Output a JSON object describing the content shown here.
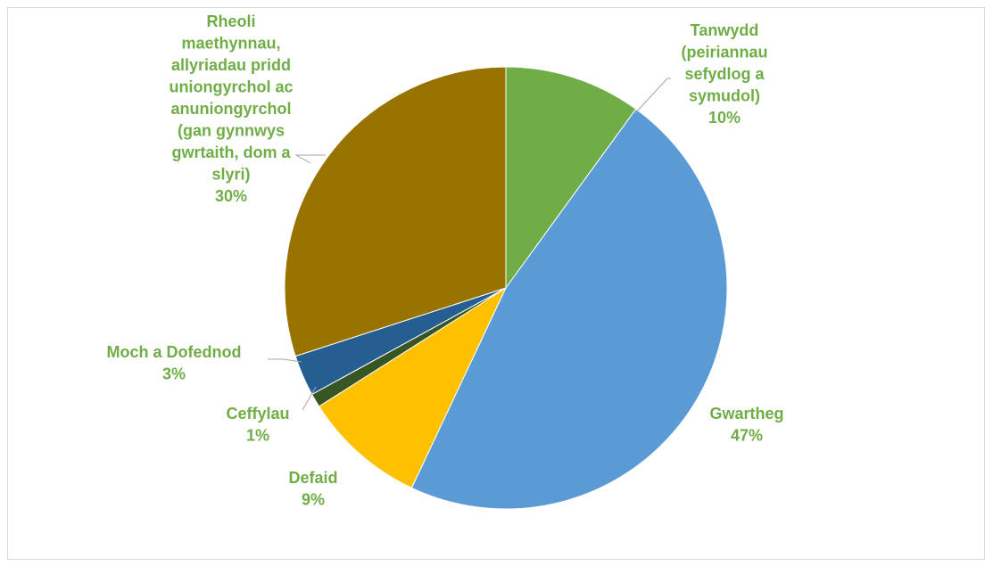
{
  "chart_data": {
    "type": "pie",
    "start_angle_deg": 0,
    "direction": "clockwise",
    "label_color": "#70ad47",
    "leader_color": "#a6a6a6",
    "slices": [
      {
        "label": [
          "Tanwydd",
          "(peiriannau",
          "sefydlog a",
          "symudol)"
        ],
        "percent_label": "10%",
        "value": 10,
        "color": "#70ad47"
      },
      {
        "label": [
          "Gwartheg"
        ],
        "percent_label": "47%",
        "value": 47,
        "color": "#5b9bd5"
      },
      {
        "label": [
          "Defaid"
        ],
        "percent_label": "9%",
        "value": 9,
        "color": "#ffc000"
      },
      {
        "label": [
          "Ceffylau"
        ],
        "percent_label": "1%",
        "value": 1,
        "color": "#375623"
      },
      {
        "label": [
          "Moch a Dofednod"
        ],
        "percent_label": "3%",
        "value": 3,
        "color": "#255e91"
      },
      {
        "label": [
          "Rheoli",
          "maethynnau,",
          "allyriadau pridd",
          "uniongyrchol ac",
          "anuniongyrchol",
          "(gan gynnwys",
          "gwrtaith, dom a",
          "slyri)"
        ],
        "percent_label": "30%",
        "value": 30,
        "color": "#997300"
      }
    ]
  }
}
